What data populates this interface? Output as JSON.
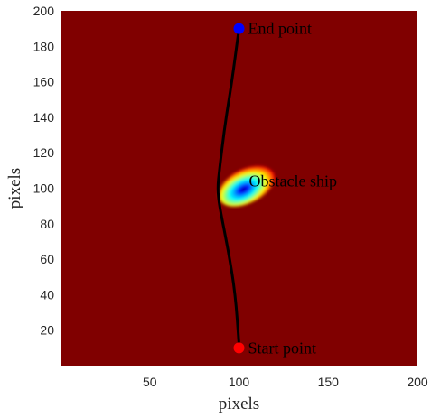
{
  "chart_data": {
    "type": "heatmap",
    "xlabel": "pixels",
    "ylabel": "pixels",
    "xlim": [
      0,
      200
    ],
    "ylim": [
      0,
      200
    ],
    "x_ticks": [
      "50",
      "100",
      "150",
      "200"
    ],
    "y_ticks": [
      "20",
      "40",
      "60",
      "80",
      "100",
      "120",
      "140",
      "160",
      "180",
      "200"
    ],
    "background_color": "#800000",
    "obstacle": {
      "label": "Obstacle ship",
      "center": [
        100,
        100
      ],
      "peak_color": "#0000ff"
    },
    "path": {
      "color": "#000000",
      "points": [
        [
          100,
          12
        ],
        [
          98,
          40
        ],
        [
          94,
          65
        ],
        [
          89,
          90
        ],
        [
          88,
          100
        ],
        [
          89,
          110
        ],
        [
          92,
          135
        ],
        [
          96,
          160
        ],
        [
          100,
          190
        ]
      ]
    },
    "start_point": {
      "label": "Start point",
      "x": 100,
      "y": 10,
      "color": "#ff0000"
    },
    "end_point": {
      "label": "End point",
      "x": 100,
      "y": 190,
      "color": "#0000ff"
    }
  }
}
